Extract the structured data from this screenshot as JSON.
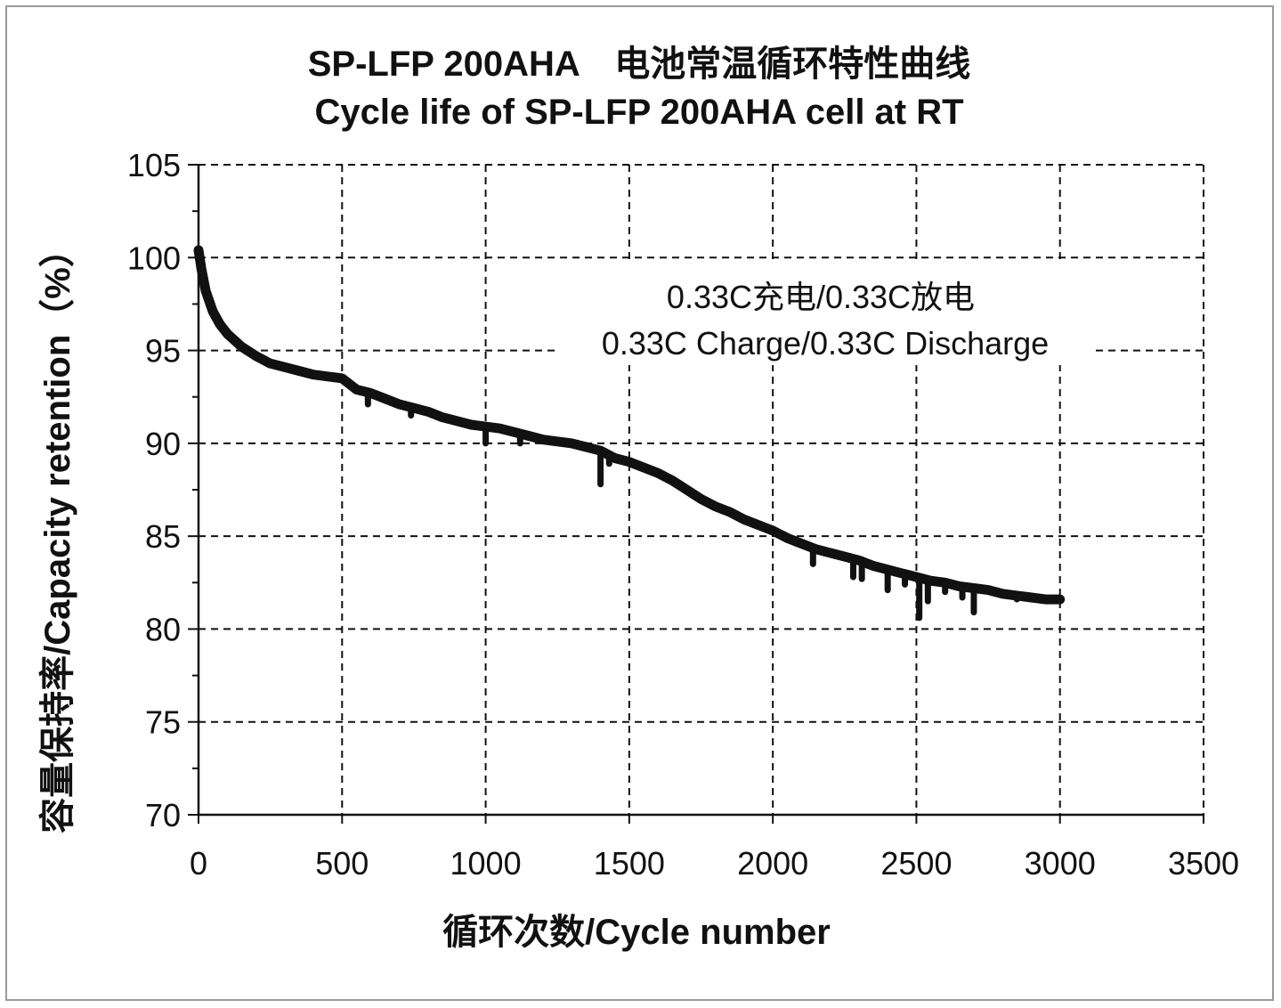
{
  "chart_data": {
    "type": "line",
    "title": "SP-LFP 200AHA　电池常温循环特性曲线",
    "subtitle": "Cycle life of SP-LFP 200AHA cell at RT",
    "xlabel": "循环次数/Cycle number",
    "ylabel": "容量保持率/Capacity retention（%）",
    "xlim": [
      0,
      3500
    ],
    "ylim": [
      70,
      105
    ],
    "x_ticks": [
      0,
      500,
      1000,
      1500,
      2000,
      2500,
      3000,
      3500
    ],
    "y_ticks": [
      70,
      75,
      80,
      85,
      90,
      95,
      100,
      105
    ],
    "grid": true,
    "annotations": [
      "0.33C充电/0.33C放电",
      "0.33C Charge/0.33C Discharge"
    ],
    "line_color": "#111111",
    "series": [
      {
        "x": [
          0,
          10,
          25,
          50,
          75,
          100,
          150,
          200,
          250,
          300,
          350,
          400,
          450,
          500,
          550,
          600,
          650,
          700,
          750,
          800,
          850,
          900,
          950,
          1000,
          1050,
          1100,
          1150,
          1200,
          1250,
          1300,
          1350,
          1400,
          1450,
          1500,
          1550,
          1600,
          1650,
          1700,
          1750,
          1800,
          1850,
          1900,
          1950,
          2000,
          2050,
          2100,
          2150,
          2200,
          2250,
          2300,
          2350,
          2400,
          2450,
          2500,
          2550,
          2600,
          2650,
          2700,
          2750,
          2800,
          2850,
          2900,
          2950,
          3000
        ],
        "y": [
          100.4,
          99.4,
          98.2,
          97.1,
          96.4,
          95.9,
          95.2,
          94.7,
          94.3,
          94.1,
          93.9,
          93.7,
          93.6,
          93.5,
          92.9,
          92.7,
          92.4,
          92.1,
          91.9,
          91.7,
          91.4,
          91.2,
          91.0,
          90.9,
          90.8,
          90.6,
          90.4,
          90.2,
          90.1,
          90.0,
          89.8,
          89.6,
          89.2,
          89.0,
          88.7,
          88.4,
          88.0,
          87.5,
          87.0,
          86.6,
          86.3,
          85.9,
          85.6,
          85.3,
          84.9,
          84.6,
          84.3,
          84.1,
          83.9,
          83.7,
          83.4,
          83.2,
          83.0,
          82.8,
          82.6,
          82.5,
          82.3,
          82.2,
          82.1,
          81.9,
          81.8,
          81.7,
          81.6,
          81.6
        ]
      }
    ],
    "dips": [
      {
        "x": 590,
        "y": 92.1
      },
      {
        "x": 650,
        "y": 92.3
      },
      {
        "x": 740,
        "y": 91.5
      },
      {
        "x": 1000,
        "y": 90.0
      },
      {
        "x": 1120,
        "y": 90.0
      },
      {
        "x": 1400,
        "y": 87.8
      },
      {
        "x": 1430,
        "y": 88.9
      },
      {
        "x": 2140,
        "y": 83.5
      },
      {
        "x": 2280,
        "y": 82.8
      },
      {
        "x": 2310,
        "y": 82.7
      },
      {
        "x": 2400,
        "y": 82.1
      },
      {
        "x": 2460,
        "y": 82.4
      },
      {
        "x": 2510,
        "y": 80.6
      },
      {
        "x": 2540,
        "y": 81.5
      },
      {
        "x": 2600,
        "y": 82.0
      },
      {
        "x": 2660,
        "y": 81.7
      },
      {
        "x": 2700,
        "y": 80.9
      },
      {
        "x": 2850,
        "y": 81.6
      }
    ]
  }
}
